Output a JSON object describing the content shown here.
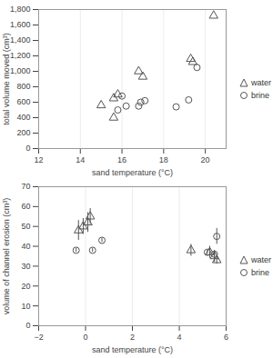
{
  "chart_data": [
    {
      "type": "scatter",
      "xlabel": "sand temperature (°C)",
      "ylabel": "total volume moved (cm³)",
      "xlim": [
        12,
        21
      ],
      "xticks": [
        12,
        14,
        16,
        18,
        20
      ],
      "ylim": [
        0,
        1800
      ],
      "yticks": [
        0,
        200,
        400,
        600,
        800,
        1000,
        1200,
        1400,
        1600,
        1800
      ],
      "grid": true,
      "legend": "right",
      "series": [
        {
          "name": "water",
          "marker": "triangle",
          "color": "#555555",
          "x": [
            15.0,
            15.6,
            15.6,
            15.8,
            16.8,
            17.0,
            19.3,
            19.4,
            20.4
          ],
          "values": [
            560,
            400,
            650,
            700,
            1000,
            930,
            1160,
            1120,
            1720
          ]
        },
        {
          "name": "brine",
          "marker": "circle",
          "color": "#555555",
          "x": [
            15.8,
            16.0,
            16.2,
            16.8,
            16.9,
            17.1,
            18.6,
            19.2,
            19.6
          ],
          "values": [
            500,
            680,
            550,
            550,
            600,
            620,
            540,
            630,
            1050
          ]
        }
      ]
    },
    {
      "type": "scatter",
      "xlabel": "sand temperature (°C)",
      "ylabel": "volume of channel erosion (cm³)",
      "xlim": [
        -2,
        6
      ],
      "xticks": [
        -2,
        0,
        2,
        4,
        6
      ],
      "ylim": [
        0,
        70
      ],
      "yticks": [
        0,
        10,
        20,
        30,
        40,
        50,
        60,
        70
      ],
      "grid": true,
      "legend": "right",
      "series": [
        {
          "name": "water",
          "marker": "triangle",
          "color": "#555555",
          "x": [
            -0.3,
            -0.1,
            0.1,
            0.2,
            4.5,
            5.3,
            5.5,
            5.6
          ],
          "values": [
            48,
            50,
            52,
            55,
            38,
            37,
            35,
            33
          ],
          "error": [
            5,
            4,
            5,
            4,
            3,
            3,
            3,
            2
          ]
        },
        {
          "name": "brine",
          "marker": "circle",
          "color": "#555555",
          "x": [
            -0.4,
            0.3,
            0.7,
            5.2,
            5.5,
            5.6
          ],
          "values": [
            38,
            38,
            43,
            37,
            36,
            45
          ],
          "error": [
            1,
            1,
            1,
            1,
            1,
            4
          ]
        }
      ]
    }
  ]
}
